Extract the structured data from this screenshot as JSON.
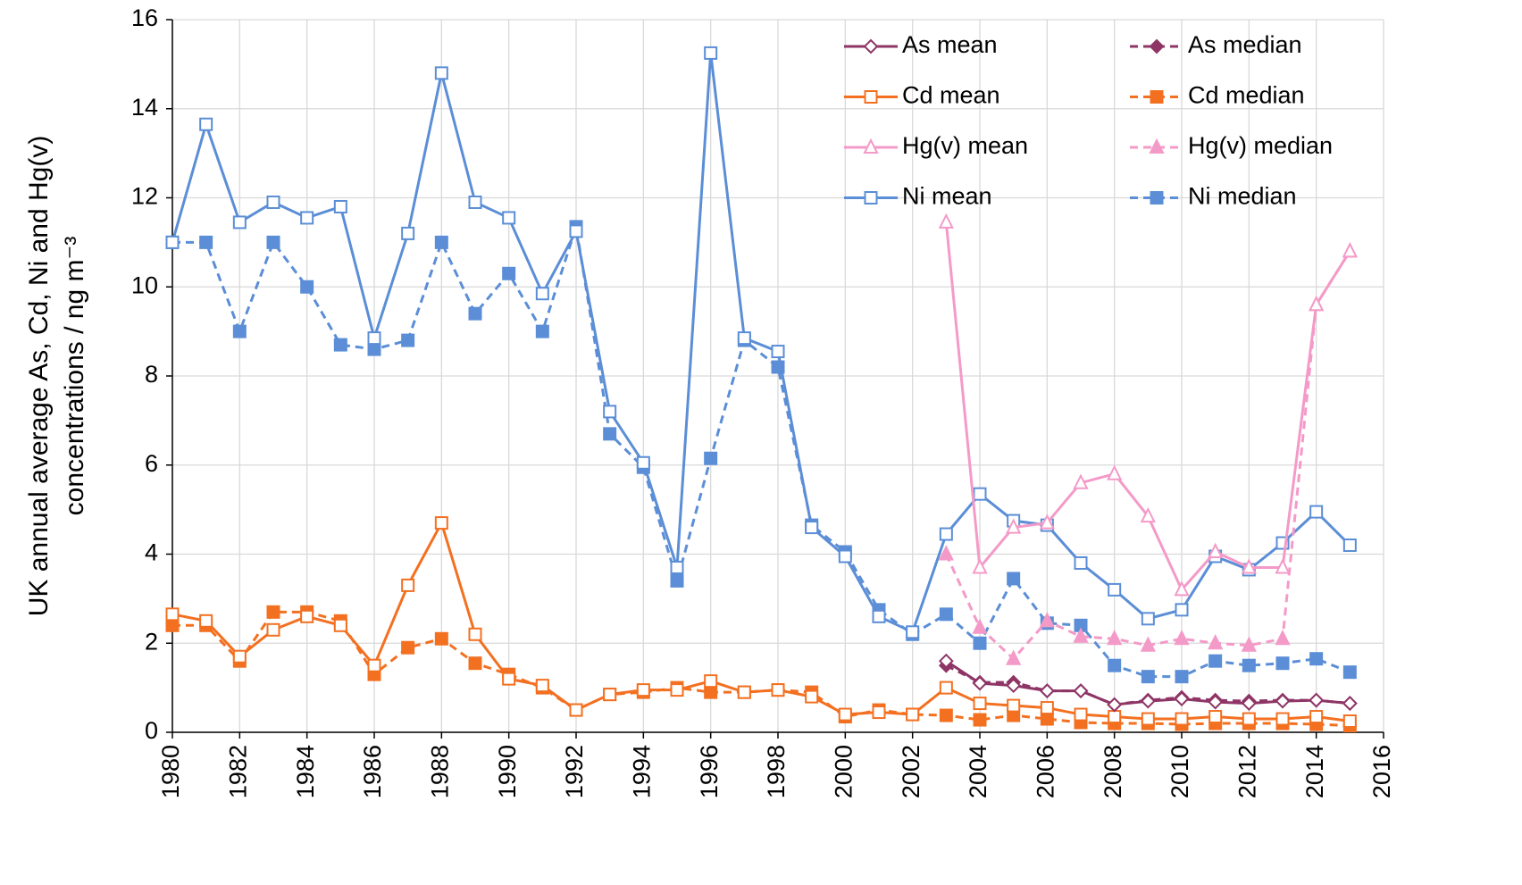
{
  "chart_data": {
    "type": "line",
    "y_label": [
      "UK annual average As, Cd, Ni and Hg(v)",
      "concentrations / ng m⁻³"
    ],
    "x": [
      1980,
      1981,
      1982,
      1983,
      1984,
      1985,
      1986,
      1987,
      1988,
      1989,
      1990,
      1991,
      1992,
      1993,
      1994,
      1995,
      1996,
      1997,
      1998,
      1999,
      2000,
      2001,
      2002,
      2003,
      2004,
      2005,
      2006,
      2007,
      2008,
      2009,
      2010,
      2011,
      2012,
      2013,
      2014,
      2015
    ],
    "xlim": [
      1980,
      2016
    ],
    "xticks": [
      1980,
      1982,
      1984,
      1986,
      1988,
      1990,
      1992,
      1994,
      1996,
      1998,
      2000,
      2002,
      2004,
      2006,
      2008,
      2010,
      2012,
      2014,
      2016
    ],
    "ylim": [
      0,
      16
    ],
    "yticks": [
      0,
      2,
      4,
      6,
      8,
      10,
      12,
      14,
      16
    ],
    "grid": true,
    "legend": "upper right",
    "series": [
      {
        "name": "As mean",
        "color": "#8e3566",
        "marker": "diamond",
        "filled": false,
        "dashed": false,
        "values": [
          null,
          null,
          null,
          null,
          null,
          null,
          null,
          null,
          null,
          null,
          null,
          null,
          null,
          null,
          null,
          null,
          null,
          null,
          null,
          null,
          null,
          null,
          null,
          1.6,
          1.1,
          1.05,
          0.93,
          0.93,
          0.62,
          0.7,
          0.75,
          0.68,
          0.65,
          0.7,
          0.72,
          0.65
        ]
      },
      {
        "name": "As median",
        "color": "#8e3566",
        "marker": "diamond",
        "filled": true,
        "dashed": true,
        "values": [
          null,
          null,
          null,
          null,
          null,
          null,
          null,
          null,
          null,
          null,
          null,
          null,
          null,
          null,
          null,
          null,
          null,
          null,
          null,
          null,
          null,
          null,
          null,
          1.5,
          1.12,
          1.12,
          0.93,
          0.93,
          0.62,
          0.72,
          0.78,
          0.72,
          0.7,
          0.72,
          0.72,
          0.65
        ]
      },
      {
        "name": "Cd mean",
        "color": "#f37021",
        "marker": "square",
        "filled": false,
        "dashed": false,
        "values": [
          2.65,
          2.5,
          1.7,
          2.3,
          2.6,
          2.4,
          1.5,
          3.3,
          4.7,
          2.2,
          1.2,
          1.05,
          0.5,
          0.85,
          0.95,
          0.95,
          1.15,
          0.9,
          0.95,
          0.8,
          0.4,
          0.45,
          0.4,
          1.0,
          0.65,
          0.6,
          0.55,
          0.4,
          0.35,
          0.3,
          0.3,
          0.35,
          0.3,
          0.3,
          0.35,
          0.25
        ]
      },
      {
        "name": "Cd median",
        "color": "#f37021",
        "marker": "square",
        "filled": true,
        "dashed": true,
        "values": [
          2.4,
          2.4,
          1.6,
          2.7,
          2.7,
          2.5,
          1.3,
          1.9,
          2.1,
          1.55,
          1.3,
          1.0,
          0.5,
          0.85,
          0.9,
          1.0,
          0.9,
          0.9,
          0.95,
          0.9,
          0.35,
          0.5,
          0.4,
          0.38,
          0.28,
          0.38,
          0.3,
          0.22,
          0.2,
          0.2,
          0.18,
          0.2,
          0.2,
          0.2,
          0.18,
          0.15
        ]
      },
      {
        "name": "Hg(v) mean",
        "color": "#f49ac8",
        "marker": "triangle",
        "filled": false,
        "dashed": false,
        "values": [
          null,
          null,
          null,
          null,
          null,
          null,
          null,
          null,
          null,
          null,
          null,
          null,
          null,
          null,
          null,
          null,
          null,
          null,
          null,
          null,
          null,
          null,
          null,
          11.45,
          3.7,
          4.6,
          4.7,
          5.6,
          5.8,
          4.85,
          3.2,
          4.05,
          3.7,
          3.7,
          9.6,
          10.8
        ]
      },
      {
        "name": "Hg(v) median",
        "color": "#f49ac8",
        "marker": "triangle",
        "filled": true,
        "dashed": true,
        "values": [
          null,
          null,
          null,
          null,
          null,
          null,
          null,
          null,
          null,
          null,
          null,
          null,
          null,
          null,
          null,
          null,
          null,
          null,
          null,
          null,
          null,
          null,
          null,
          4.0,
          2.35,
          1.65,
          2.5,
          2.15,
          2.1,
          1.95,
          2.1,
          2.0,
          1.95,
          2.1,
          9.6,
          10.8
        ]
      },
      {
        "name": "Ni mean",
        "color": "#5b8ed6",
        "marker": "square",
        "filled": false,
        "dashed": false,
        "values": [
          11.0,
          13.65,
          11.45,
          11.9,
          11.55,
          11.8,
          8.85,
          11.2,
          14.8,
          11.9,
          11.55,
          9.85,
          11.25,
          7.2,
          6.05,
          3.7,
          15.25,
          8.85,
          8.55,
          4.6,
          3.95,
          2.6,
          2.25,
          4.45,
          5.35,
          4.75,
          4.65,
          3.8,
          3.2,
          2.55,
          2.75,
          3.95,
          3.65,
          4.25,
          4.95,
          4.2
        ]
      },
      {
        "name": "Ni median",
        "color": "#5b8ed6",
        "marker": "square",
        "filled": true,
        "dashed": true,
        "values": [
          11.0,
          11.0,
          9.0,
          11.0,
          10.0,
          8.7,
          8.6,
          8.8,
          11.0,
          9.4,
          10.3,
          9.0,
          11.35,
          6.7,
          5.95,
          3.4,
          6.15,
          8.8,
          8.2,
          4.65,
          4.05,
          2.75,
          2.2,
          2.65,
          2.0,
          3.45,
          2.45,
          2.4,
          1.5,
          1.25,
          1.25,
          1.6,
          1.5,
          1.55,
          1.65,
          1.35
        ]
      }
    ]
  }
}
